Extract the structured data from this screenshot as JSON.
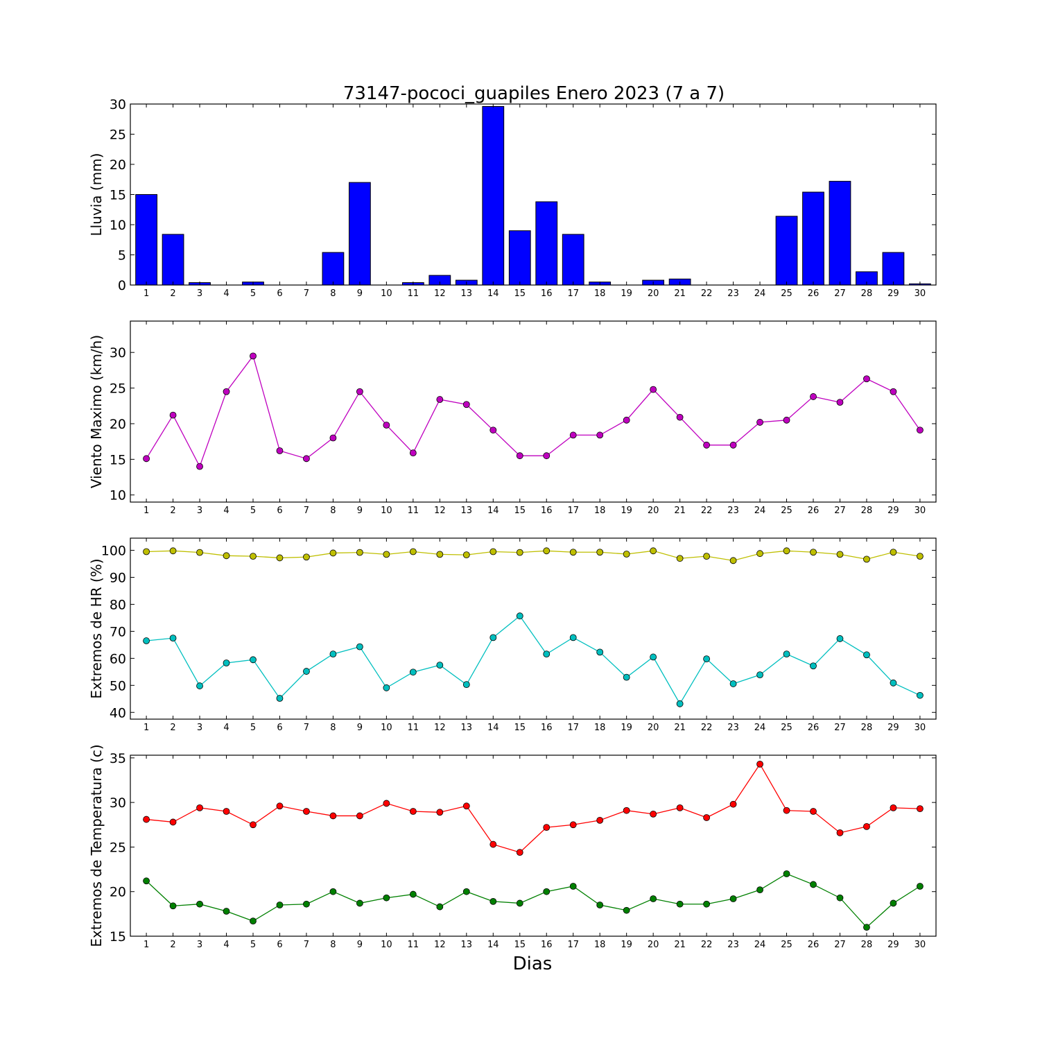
{
  "title": "73147-pococi_guapiles Enero 2023  (7 a 7)",
  "xlabel": "Dias",
  "chart_data": [
    {
      "type": "bar",
      "ylabel": "Lluvia (mm)",
      "ylim": [
        0,
        30
      ],
      "yticks": [
        0,
        5,
        10,
        15,
        20,
        25,
        30
      ],
      "categories": [
        "1",
        "2",
        "3",
        "4",
        "5",
        "6",
        "7",
        "8",
        "9",
        "10",
        "11",
        "12",
        "13",
        "14",
        "15",
        "16",
        "17",
        "18",
        "19",
        "20",
        "21",
        "22",
        "23",
        "24",
        "25",
        "26",
        "27",
        "28",
        "29",
        "30"
      ],
      "series": [
        {
          "color": "#0000ff",
          "values": [
            15.0,
            8.4,
            0.4,
            0.0,
            0.5,
            0.0,
            0.0,
            5.4,
            17.0,
            0.0,
            0.4,
            1.6,
            0.8,
            29.6,
            9.0,
            13.8,
            8.4,
            0.5,
            0.0,
            0.8,
            1.0,
            0.0,
            0.0,
            0.0,
            11.4,
            15.4,
            17.2,
            2.2,
            5.4,
            0.2
          ]
        }
      ]
    },
    {
      "type": "line",
      "ylabel": "Viento Maximo (km/h)",
      "ylim": [
        9,
        34.4
      ],
      "yticks": [
        10,
        15,
        20,
        25,
        30
      ],
      "categories": [
        "1",
        "2",
        "3",
        "4",
        "5",
        "6",
        "7",
        "8",
        "9",
        "10",
        "11",
        "12",
        "13",
        "14",
        "15",
        "16",
        "17",
        "18",
        "19",
        "20",
        "21",
        "22",
        "23",
        "24",
        "25",
        "26",
        "27",
        "28",
        "29",
        "30"
      ],
      "series": [
        {
          "color": "#bf00bf",
          "values": [
            15.1,
            21.2,
            14.0,
            24.5,
            29.5,
            16.2,
            15.1,
            18.0,
            24.5,
            19.8,
            15.9,
            23.4,
            22.7,
            19.1,
            15.5,
            15.5,
            18.4,
            18.4,
            20.5,
            24.8,
            20.9,
            17.0,
            17.0,
            20.2,
            20.5,
            23.8,
            23.0,
            26.3,
            24.5,
            19.1
          ]
        }
      ]
    },
    {
      "type": "line",
      "ylabel": "Extremos de HR (%)",
      "ylim": [
        37.5,
        104.5
      ],
      "yticks": [
        40,
        50,
        60,
        70,
        80,
        90,
        100
      ],
      "categories": [
        "1",
        "2",
        "3",
        "4",
        "5",
        "6",
        "7",
        "8",
        "9",
        "10",
        "11",
        "12",
        "13",
        "14",
        "15",
        "16",
        "17",
        "18",
        "19",
        "20",
        "21",
        "22",
        "23",
        "24",
        "25",
        "26",
        "27",
        "28",
        "29",
        "30"
      ],
      "series": [
        {
          "color": "#bfbf00",
          "values": [
            99.5,
            99.8,
            99.2,
            98.0,
            97.8,
            97.2,
            97.5,
            99.0,
            99.2,
            98.5,
            99.5,
            98.5,
            98.3,
            99.5,
            99.2,
            99.8,
            99.3,
            99.3,
            98.6,
            99.8,
            97.0,
            97.8,
            96.2,
            98.8,
            99.8,
            99.3,
            98.5,
            96.7,
            99.3,
            97.8
          ]
        },
        {
          "color": "#00bfbf",
          "values": [
            66.5,
            67.5,
            49.8,
            58.3,
            59.5,
            45.2,
            55.2,
            61.6,
            64.3,
            49.1,
            54.9,
            57.5,
            50.3,
            67.7,
            75.7,
            61.6,
            67.7,
            62.3,
            53.0,
            60.5,
            43.2,
            59.8,
            50.6,
            53.9,
            61.6,
            57.2,
            67.3,
            61.3,
            50.9,
            46.3
          ]
        }
      ]
    },
    {
      "type": "line",
      "ylabel": "Extremos de Temperatura (c)",
      "ylim": [
        15,
        35.3
      ],
      "yticks": [
        15,
        20,
        25,
        30,
        35
      ],
      "categories": [
        "1",
        "2",
        "3",
        "4",
        "5",
        "6",
        "7",
        "8",
        "9",
        "10",
        "11",
        "12",
        "13",
        "14",
        "15",
        "16",
        "17",
        "18",
        "19",
        "20",
        "21",
        "22",
        "23",
        "24",
        "25",
        "26",
        "27",
        "28",
        "29",
        "30"
      ],
      "series": [
        {
          "color": "#ff0000",
          "values": [
            28.1,
            27.8,
            29.4,
            29.0,
            27.5,
            29.6,
            29.0,
            28.5,
            28.5,
            29.9,
            29.0,
            28.9,
            29.6,
            25.3,
            24.4,
            27.2,
            27.5,
            28.0,
            29.1,
            28.7,
            29.4,
            28.3,
            29.8,
            34.3,
            29.1,
            29.0,
            26.6,
            27.3,
            29.4,
            29.3
          ]
        },
        {
          "color": "#008000",
          "values": [
            21.2,
            18.4,
            18.6,
            17.8,
            16.7,
            18.5,
            18.6,
            20.0,
            18.7,
            19.3,
            19.7,
            18.3,
            20.0,
            18.9,
            18.7,
            20.0,
            20.6,
            18.5,
            17.9,
            19.2,
            18.6,
            18.6,
            19.2,
            20.2,
            22.0,
            20.8,
            19.3,
            16.0,
            18.7,
            20.6
          ]
        }
      ]
    }
  ]
}
